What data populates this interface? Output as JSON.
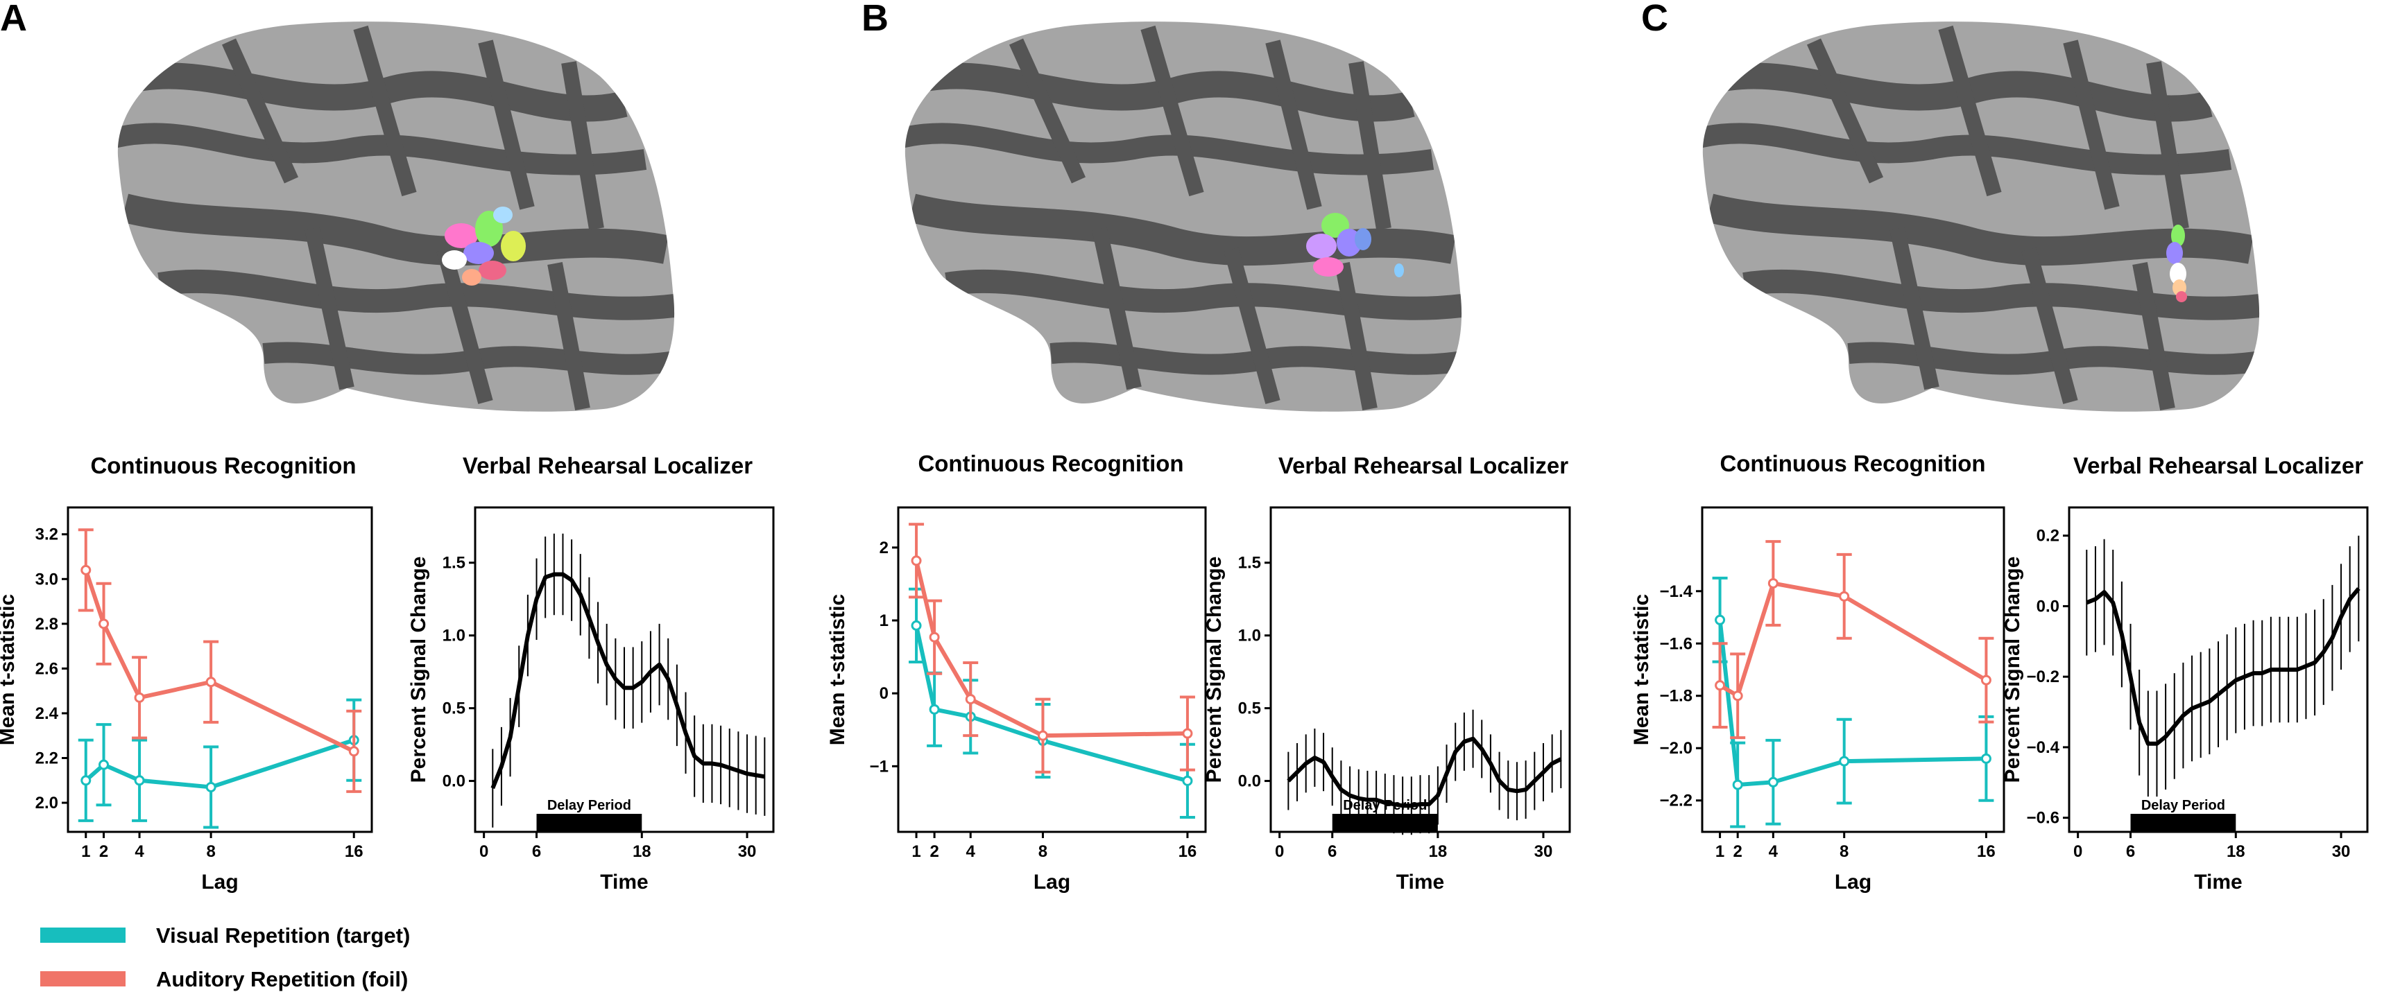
{
  "colors": {
    "visual": "#17BEBE",
    "auditory": "#F07468",
    "line": "#000000",
    "brain_dark": "#555555",
    "brain_light": "#A5A5A5"
  },
  "legend": {
    "visual_label": "Visual Repetition (target)",
    "auditory_label": "Auditory Repetition (foil)"
  },
  "panels": [
    {
      "label": "A",
      "cr_title": "Continuous Recognition",
      "vr_title": "Verbal Rehearsal Localizer",
      "delay_label": "Delay Period"
    },
    {
      "label": "B",
      "cr_title": "Continuous Recognition",
      "vr_title": "Verbal Rehearsal Localizer",
      "delay_label": "Delay Period"
    },
    {
      "label": "C",
      "cr_title": "Continuous Recognition",
      "vr_title": "Verbal Rehearsal Localizer",
      "delay_label": "Delay Period"
    }
  ],
  "chart_data": [
    {
      "id": "A-cr",
      "type": "line",
      "title": "Continuous Recognition",
      "xlabel": "Lag",
      "ylabel": "Mean t-statistic",
      "x": [
        1,
        2,
        4,
        8,
        16
      ],
      "xticks": [
        1,
        2,
        4,
        8,
        16
      ],
      "xlim": [
        0,
        17
      ],
      "ylim": [
        1.87,
        3.32
      ],
      "yticks": [
        2.0,
        2.2,
        2.4,
        2.6,
        2.8,
        3.0,
        3.2
      ],
      "series": [
        {
          "name": "Visual Repetition (target)",
          "color": "visual",
          "values": [
            2.1,
            2.17,
            2.1,
            2.07,
            2.28
          ],
          "err": [
            0.18,
            0.18,
            0.18,
            0.18,
            0.18
          ]
        },
        {
          "name": "Auditory Repetition (foil)",
          "color": "auditory",
          "values": [
            3.04,
            2.8,
            2.47,
            2.54,
            2.23
          ],
          "err": [
            0.18,
            0.18,
            0.18,
            0.18,
            0.18
          ]
        }
      ]
    },
    {
      "id": "A-vr",
      "type": "line",
      "title": "Verbal Rehearsal Localizer",
      "xlabel": "Time",
      "ylabel": "Percent Signal Change",
      "xlim": [
        -1,
        33
      ],
      "xticks": [
        0,
        6,
        18,
        30
      ],
      "ylim": [
        -0.35,
        1.88
      ],
      "yticks": [
        0.0,
        0.5,
        1.0,
        1.5
      ],
      "delay_period": [
        6,
        18
      ],
      "x": [
        1,
        2,
        3,
        4,
        5,
        6,
        7,
        8,
        9,
        10,
        11,
        12,
        13,
        14,
        15,
        16,
        17,
        18,
        19,
        20,
        21,
        22,
        23,
        24,
        25,
        26,
        27,
        28,
        29,
        30,
        31,
        32
      ],
      "values": [
        -0.05,
        0.1,
        0.3,
        0.65,
        1.0,
        1.25,
        1.4,
        1.42,
        1.42,
        1.38,
        1.28,
        1.12,
        0.95,
        0.8,
        0.7,
        0.64,
        0.64,
        0.68,
        0.75,
        0.8,
        0.7,
        0.52,
        0.33,
        0.17,
        0.12,
        0.12,
        0.11,
        0.09,
        0.07,
        0.05,
        0.04,
        0.03
      ],
      "err": [
        0.27,
        0.27,
        0.27,
        0.28,
        0.28,
        0.28,
        0.28,
        0.28,
        0.28,
        0.28,
        0.28,
        0.28,
        0.28,
        0.28,
        0.28,
        0.28,
        0.28,
        0.28,
        0.28,
        0.28,
        0.28,
        0.28,
        0.28,
        0.28,
        0.27,
        0.27,
        0.27,
        0.27,
        0.27,
        0.27,
        0.27,
        0.27
      ],
      "delay_label": "Delay Period"
    },
    {
      "id": "B-cr",
      "type": "line",
      "title": "Continuous Recognition",
      "xlabel": "Lag",
      "ylabel": "Mean t-statistic",
      "x": [
        1,
        2,
        4,
        8,
        16
      ],
      "xticks": [
        1,
        2,
        4,
        8,
        16
      ],
      "xlim": [
        0,
        17
      ],
      "ylim": [
        -1.9,
        2.55
      ],
      "yticks": [
        -1,
        0,
        1,
        2
      ],
      "series": [
        {
          "name": "Visual Repetition (target)",
          "color": "visual",
          "values": [
            0.93,
            -0.22,
            -0.32,
            -0.65,
            -1.2
          ],
          "err": [
            0.5,
            0.5,
            0.5,
            0.5,
            0.5
          ]
        },
        {
          "name": "Auditory Repetition (foil)",
          "color": "auditory",
          "values": [
            1.82,
            0.77,
            -0.08,
            -0.58,
            -0.55
          ],
          "err": [
            0.5,
            0.5,
            0.5,
            0.5,
            0.5
          ]
        }
      ]
    },
    {
      "id": "B-vr",
      "type": "line",
      "title": "Verbal Rehearsal Localizer",
      "xlabel": "Time",
      "ylabel": "Percent Signal Change",
      "xlim": [
        -1,
        33
      ],
      "xticks": [
        0,
        6,
        18,
        30
      ],
      "ylim": [
        -0.35,
        1.88
      ],
      "yticks": [
        0.0,
        0.5,
        1.0,
        1.5
      ],
      "delay_period": [
        6,
        18
      ],
      "x": [
        1,
        2,
        3,
        4,
        5,
        6,
        7,
        8,
        9,
        10,
        11,
        12,
        13,
        14,
        15,
        16,
        17,
        18,
        19,
        20,
        21,
        22,
        23,
        24,
        25,
        26,
        27,
        28,
        29,
        30,
        31,
        32
      ],
      "values": [
        0.0,
        0.06,
        0.12,
        0.16,
        0.13,
        0.03,
        -0.06,
        -0.1,
        -0.12,
        -0.13,
        -0.13,
        -0.15,
        -0.16,
        -0.17,
        -0.17,
        -0.16,
        -0.16,
        -0.1,
        0.05,
        0.2,
        0.27,
        0.29,
        0.22,
        0.12,
        0.0,
        -0.06,
        -0.07,
        -0.06,
        0.0,
        0.06,
        0.12,
        0.15
      ],
      "err": [
        0.2,
        0.2,
        0.2,
        0.2,
        0.2,
        0.2,
        0.2,
        0.2,
        0.2,
        0.2,
        0.2,
        0.2,
        0.2,
        0.2,
        0.2,
        0.2,
        0.2,
        0.2,
        0.2,
        0.2,
        0.2,
        0.2,
        0.2,
        0.2,
        0.2,
        0.2,
        0.2,
        0.2,
        0.2,
        0.2,
        0.2,
        0.2
      ],
      "delay_label": "Delay Period"
    },
    {
      "id": "C-cr",
      "type": "line",
      "title": "Continuous Recognition",
      "xlabel": "Lag",
      "ylabel": "Mean t-statistic",
      "x": [
        1,
        2,
        4,
        8,
        16
      ],
      "xticks": [
        1,
        2,
        4,
        8,
        16
      ],
      "xlim": [
        0,
        17
      ],
      "ylim": [
        -2.32,
        -1.08
      ],
      "yticks": [
        -2.2,
        -2.0,
        -1.8,
        -1.6,
        -1.4
      ],
      "series": [
        {
          "name": "Visual Repetition (target)",
          "color": "visual",
          "values": [
            -1.51,
            -2.14,
            -2.13,
            -2.05,
            -2.04
          ],
          "err": [
            0.16,
            0.16,
            0.16,
            0.16,
            0.16
          ]
        },
        {
          "name": "Auditory Repetition (foil)",
          "color": "auditory",
          "values": [
            -1.76,
            -1.8,
            -1.37,
            -1.42,
            -1.74
          ],
          "err": [
            0.16,
            0.16,
            0.16,
            0.16,
            0.16
          ]
        }
      ]
    },
    {
      "id": "C-vr",
      "type": "line",
      "title": "Verbal Rehearsal Localizer",
      "xlabel": "Time",
      "ylabel": "Percent Signal Change",
      "xlim": [
        -1,
        33
      ],
      "xticks": [
        0,
        6,
        18,
        30
      ],
      "ylim": [
        -0.64,
        0.28
      ],
      "yticks": [
        -0.6,
        -0.4,
        -0.2,
        0.0,
        0.2
      ],
      "delay_period": [
        6,
        18
      ],
      "x": [
        1,
        2,
        3,
        4,
        5,
        6,
        7,
        8,
        9,
        10,
        11,
        12,
        13,
        14,
        15,
        16,
        17,
        18,
        19,
        20,
        21,
        22,
        23,
        24,
        25,
        26,
        27,
        28,
        29,
        30,
        31,
        32
      ],
      "values": [
        0.01,
        0.02,
        0.04,
        0.01,
        -0.08,
        -0.2,
        -0.33,
        -0.39,
        -0.39,
        -0.37,
        -0.34,
        -0.31,
        -0.29,
        -0.28,
        -0.27,
        -0.25,
        -0.23,
        -0.21,
        -0.2,
        -0.19,
        -0.19,
        -0.18,
        -0.18,
        -0.18,
        -0.18,
        -0.17,
        -0.16,
        -0.13,
        -0.09,
        -0.03,
        0.02,
        0.05
      ],
      "err": [
        0.15,
        0.15,
        0.15,
        0.15,
        0.15,
        0.15,
        0.15,
        0.15,
        0.15,
        0.15,
        0.15,
        0.15,
        0.15,
        0.15,
        0.15,
        0.15,
        0.15,
        0.15,
        0.15,
        0.15,
        0.15,
        0.15,
        0.15,
        0.15,
        0.15,
        0.15,
        0.15,
        0.15,
        0.15,
        0.15,
        0.15,
        0.15
      ],
      "delay_label": "Delay Period"
    }
  ]
}
